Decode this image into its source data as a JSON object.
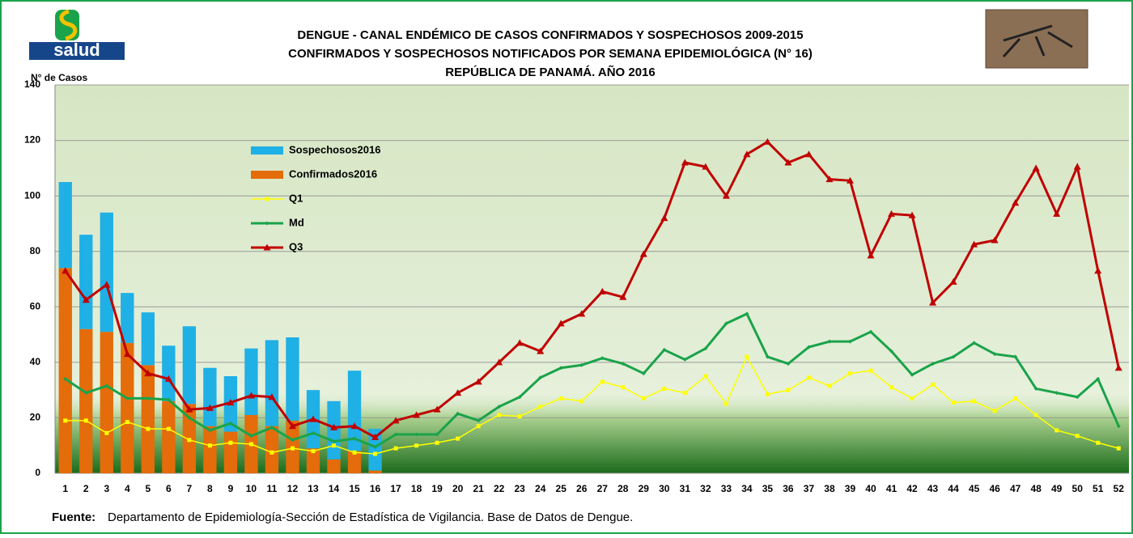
{
  "header": {
    "logo_text": "salud"
  },
  "chart_data": {
    "type": "combo",
    "title": [
      "DENGUE - CANAL ENDÉMICO DE CASOS CONFIRMADOS Y SOSPECHOSOS 2009-2015",
      "CONFIRMADOS Y SOSPECHOSOS NOTIFICADOS POR SEMANA EPIDEMIOLÓGICA (N° 16)",
      "REPÚBLICA DE PANAMÁ. AÑO 2016"
    ],
    "y_label": "N° de Casos",
    "categories": [
      1,
      2,
      3,
      4,
      5,
      6,
      7,
      8,
      9,
      10,
      11,
      12,
      13,
      14,
      15,
      16,
      17,
      18,
      19,
      20,
      21,
      22,
      23,
      24,
      25,
      26,
      27,
      28,
      29,
      30,
      31,
      32,
      33,
      34,
      35,
      36,
      37,
      38,
      39,
      40,
      41,
      42,
      43,
      44,
      45,
      46,
      47,
      48,
      49,
      50,
      51,
      52
    ],
    "ylim": [
      0,
      140
    ],
    "yticks": [
      0,
      20,
      40,
      60,
      80,
      100,
      120,
      140
    ],
    "grid": true,
    "stacked": true,
    "series": [
      {
        "name": "Sospechosos2016",
        "type": "bar",
        "color": "#1fb0e6",
        "values": [
          31,
          34,
          43,
          18,
          19,
          20,
          28,
          21,
          20,
          24,
          31,
          30,
          21,
          21,
          29,
          15,
          null,
          null,
          null,
          null,
          null,
          null,
          null,
          null,
          null,
          null,
          null,
          null,
          null,
          null,
          null,
          null,
          null,
          null,
          null,
          null,
          null,
          null,
          null,
          null,
          null,
          null,
          null,
          null,
          null,
          null,
          null,
          null,
          null,
          null,
          null,
          null
        ]
      },
      {
        "name": "Confirmados2016",
        "type": "bar",
        "color": "#e46c0a",
        "values": [
          74,
          52,
          51,
          47,
          39,
          26,
          25,
          17,
          15,
          21,
          17,
          19,
          9,
          5,
          8,
          1,
          null,
          null,
          null,
          null,
          null,
          null,
          null,
          null,
          null,
          null,
          null,
          null,
          null,
          null,
          null,
          null,
          null,
          null,
          null,
          null,
          null,
          null,
          null,
          null,
          null,
          null,
          null,
          null,
          null,
          null,
          null,
          null,
          null,
          null,
          null,
          null
        ]
      },
      {
        "name": "Q1",
        "type": "line",
        "marker": "square",
        "color": "#ffff00",
        "values": [
          19,
          19,
          14.5,
          18.5,
          16,
          16,
          12,
          10,
          11,
          10.5,
          7.5,
          9,
          8,
          10,
          7.5,
          7,
          9,
          10,
          11,
          12.5,
          17,
          21,
          20.5,
          24,
          27,
          26,
          33,
          31,
          27,
          30.5,
          29,
          35,
          25,
          42,
          28.5,
          30,
          34.5,
          31.5,
          36,
          37,
          31,
          27,
          32,
          25.5,
          26,
          22.5,
          27,
          21,
          15.5,
          13.5,
          11,
          9
        ]
      },
      {
        "name": "Md",
        "type": "line",
        "marker": "diamond",
        "color": "#1aa34a",
        "values": [
          34,
          29,
          31.5,
          27,
          27,
          26.5,
          20,
          15.5,
          18,
          13.5,
          16.5,
          12,
          14.5,
          11.5,
          12.5,
          9.5,
          14,
          14,
          14,
          21.5,
          19,
          24,
          27.5,
          34.5,
          38,
          39,
          41.5,
          39.5,
          36,
          44.5,
          41,
          45,
          54,
          57.5,
          42,
          39.5,
          45.5,
          47.5,
          47.5,
          51,
          44,
          35.5,
          39.5,
          42,
          47,
          43,
          42,
          30.5,
          29,
          27.5,
          34,
          17
        ]
      },
      {
        "name": "Q3",
        "type": "line",
        "marker": "triangle",
        "color": "#c00000",
        "values": [
          73,
          62.5,
          68,
          43,
          36,
          34,
          23,
          23.5,
          25.5,
          28,
          27.5,
          17,
          19.5,
          16.5,
          17,
          13,
          19,
          21,
          23,
          29,
          33,
          40,
          47,
          44,
          54,
          57.5,
          65.5,
          63.5,
          79,
          92,
          112,
          110.5,
          100,
          115,
          119.5,
          112,
          115,
          106,
          105.5,
          78.5,
          93.5,
          93,
          61.5,
          69,
          82.5,
          84,
          97.5,
          110,
          93.5,
          110.5,
          73,
          38
        ]
      }
    ]
  },
  "footer": {
    "source_label": "Fuente:",
    "source_text": "Departamento de Epidemiología-Sección de Estadística de Vigilancia. Base de Datos de Dengue."
  }
}
